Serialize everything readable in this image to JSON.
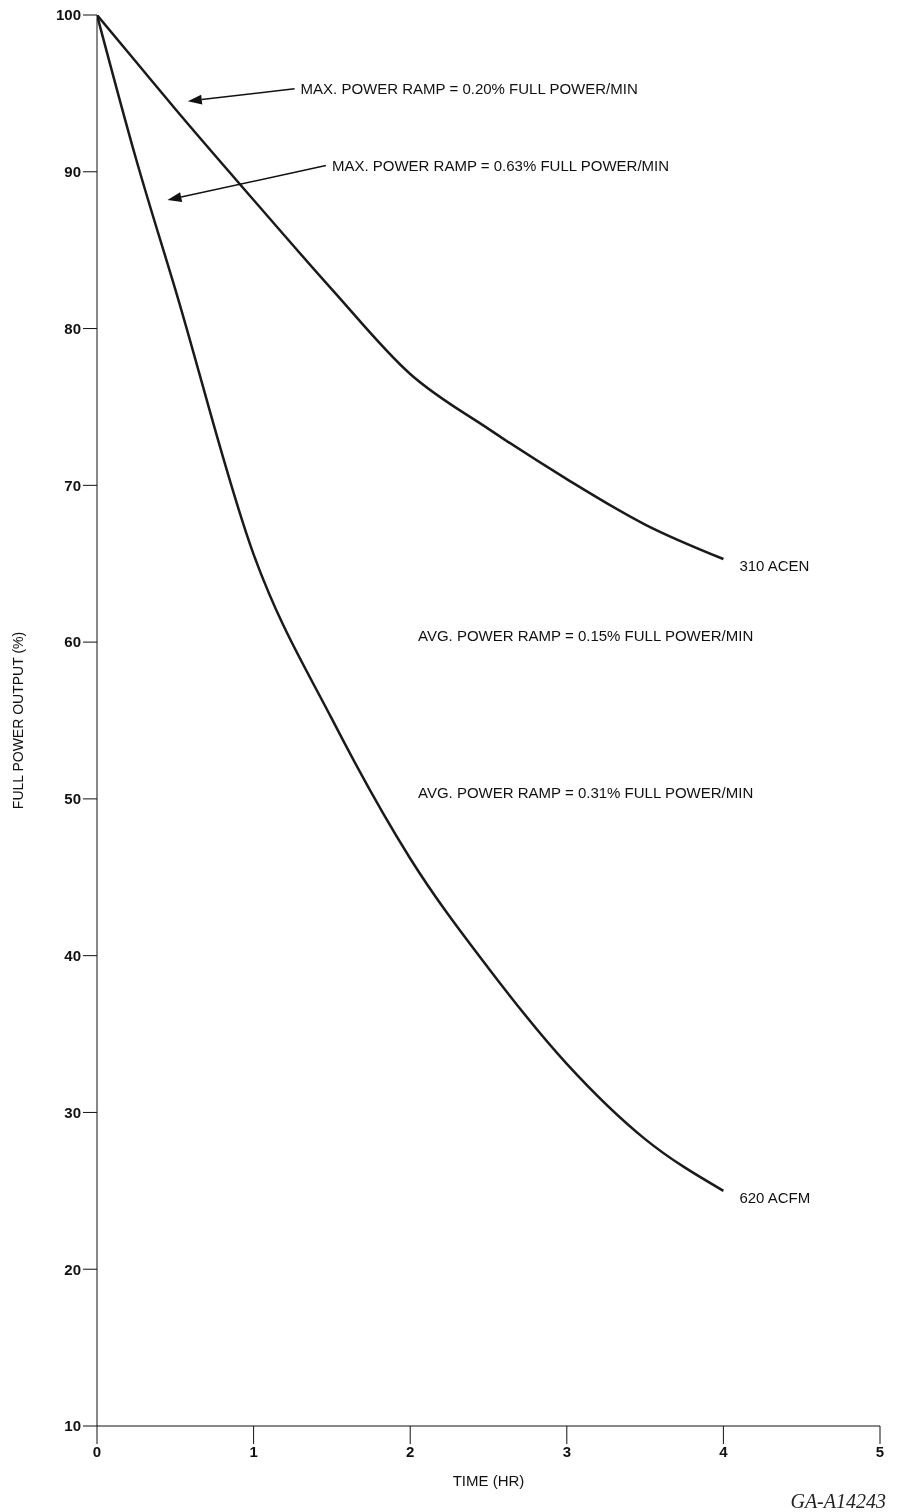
{
  "chart_data": {
    "type": "line",
    "xlabel": "TIME (HR)",
    "ylabel": "FULL POWER OUTPUT (%)",
    "x": [
      0,
      0.25,
      0.5,
      1,
      1.5,
      2,
      2.5,
      3,
      3.5,
      4
    ],
    "series": [
      {
        "name": "310 ACEN",
        "color": "#1a1a1a",
        "values": [
          100,
          97,
          94,
          88.2,
          82.5,
          77.1,
          73.6,
          70.4,
          67.5,
          65.3
        ]
      },
      {
        "name": "620 ACFM",
        "color": "#1a1a1a",
        "values": [
          100,
          90.8,
          82.5,
          65.6,
          55.1,
          46.2,
          39.2,
          33.1,
          28.3,
          25.0
        ]
      }
    ],
    "xlim": [
      0,
      5
    ],
    "xticks": [
      0,
      1,
      2,
      3,
      4,
      5
    ],
    "ylim": [
      10,
      100
    ],
    "yticks": [
      10,
      20,
      30,
      40,
      50,
      60,
      70,
      80,
      90,
      100
    ],
    "grid": false,
    "legend": false,
    "annotations": [
      "MAX. POWER RAMP = 0.20% FULL POWER/MIN",
      "MAX. POWER RAMP = 0.63% FULL POWER/MIN",
      "AVG. POWER RAMP = 0.15% FULL POWER/MIN",
      "AVG. POWER RAMP = 0.31% FULL POWER/MIN",
      "GA-A14243"
    ]
  }
}
